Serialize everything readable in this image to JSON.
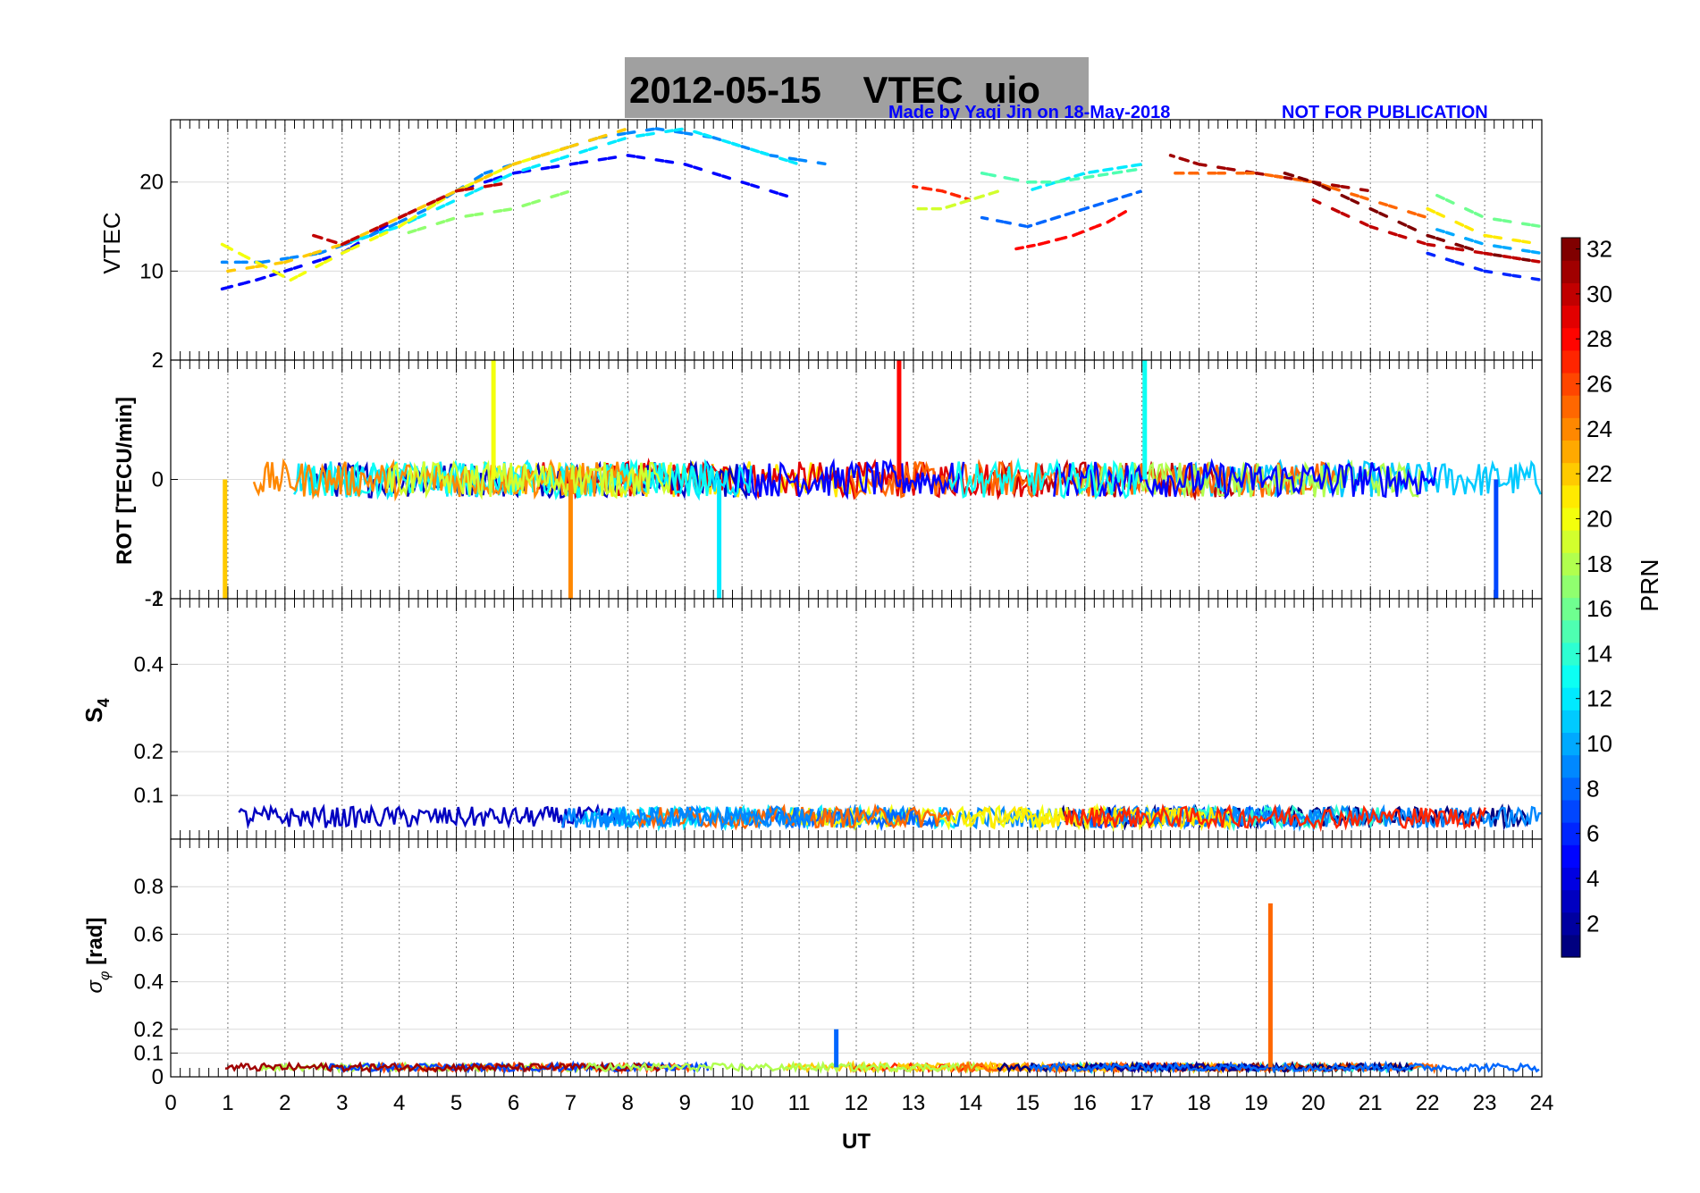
{
  "header": {
    "title": "2012-05-15    VTEC  uio",
    "credit": "Made by Yaqi Jin on 18-May-2018",
    "notice": "NOT FOR PUBLICATION",
    "credit_color": "#0000ff",
    "title_bg": "#a0a0a0"
  },
  "colorbar": {
    "label": "PRN",
    "range": [
      1,
      32
    ],
    "ticks": [
      "2",
      "4",
      "6",
      "8",
      "10",
      "12",
      "14",
      "16",
      "18",
      "20",
      "22",
      "24",
      "26",
      "28",
      "30",
      "32"
    ],
    "colormap": "jet"
  },
  "chart_data": [
    {
      "type": "scatter",
      "name": "vtec",
      "title": "2012-05-15    VTEC  uio",
      "xlabel": "",
      "ylabel": "VTEC",
      "xlim": [
        0,
        24
      ],
      "ylim": [
        0,
        27
      ],
      "yticks": [
        "10",
        "20"
      ],
      "ytick_values": [
        10,
        20
      ],
      "grid": true,
      "series_note": "one colored trace per satellite PRN (1-32); values estimated from figure",
      "series": [
        {
          "prn": 5,
          "x": [
            0.9,
            1.5,
            2.0,
            3.0,
            4.0,
            5.0,
            6.0,
            7.0,
            8.0,
            9.0,
            10.0,
            11.0
          ],
          "y": [
            8,
            9,
            10,
            12,
            16,
            19,
            21,
            22,
            23,
            22,
            20,
            18
          ]
        },
        {
          "prn": 9,
          "x": [
            0.9,
            1.6,
            2.6,
            3.5,
            4.5,
            5.5,
            6.5,
            7.5,
            8.5,
            9.5,
            10.5,
            11.5
          ],
          "y": [
            11,
            11,
            12,
            14,
            17,
            21,
            23,
            25,
            26,
            25,
            23,
            22
          ]
        },
        {
          "prn": 12,
          "x": [
            3.0,
            4.0,
            5.0,
            6.0,
            7.0,
            8.0,
            9.0,
            10.0,
            11.0
          ],
          "y": [
            13,
            15,
            18,
            21,
            23,
            25,
            26,
            24,
            22
          ]
        },
        {
          "prn": 20,
          "x": [
            0.9,
            1.5,
            2.1,
            3.0,
            4.0,
            5.0,
            6.0,
            7.0
          ],
          "y": [
            13,
            11,
            9,
            12,
            15,
            19,
            22,
            24
          ]
        },
        {
          "prn": 22,
          "x": [
            1.0,
            2.0,
            3.0,
            4.0,
            5.0,
            6.0,
            7.0,
            8.0
          ],
          "y": [
            10,
            11,
            13,
            16,
            19,
            22,
            24,
            26
          ]
        },
        {
          "prn": 17,
          "x": [
            4.0,
            5.0,
            6.0,
            7.0
          ],
          "y": [
            14,
            16,
            17,
            19
          ]
        },
        {
          "prn": 30,
          "x": [
            2.5,
            3.0,
            4.0,
            5.0,
            6.0
          ],
          "y": [
            14,
            13,
            16,
            19,
            20
          ]
        },
        {
          "prn": 27,
          "x": [
            13.0,
            13.5,
            14.0
          ],
          "y": [
            19.5,
            19,
            18
          ]
        },
        {
          "prn": 19,
          "x": [
            13.0,
            13.5,
            14.0,
            14.5
          ],
          "y": [
            17,
            17,
            18,
            19
          ]
        },
        {
          "prn": 28,
          "x": [
            14.8,
            15.2,
            15.8,
            16.4,
            16.8
          ],
          "y": [
            12.5,
            13,
            14,
            15.5,
            17
          ]
        },
        {
          "prn": 8,
          "x": [
            14.2,
            15.0,
            15.5,
            16.0,
            16.5,
            17.0
          ],
          "y": [
            16,
            15,
            16,
            17,
            18,
            19
          ]
        },
        {
          "prn": 12,
          "x": [
            15.0,
            15.5,
            16.0,
            16.5,
            17.0
          ],
          "y": [
            19,
            20,
            21,
            21.5,
            22
          ]
        },
        {
          "prn": 15,
          "x": [
            14.2,
            15.0,
            15.5,
            16.0,
            16.5,
            17.0
          ],
          "y": [
            21,
            20,
            20,
            20.5,
            21,
            21.5
          ]
        },
        {
          "prn": 31,
          "x": [
            17.5,
            18.0,
            19.0,
            20.0,
            21.0
          ],
          "y": [
            23,
            22,
            21,
            20,
            19
          ]
        },
        {
          "prn": 25,
          "x": [
            17.5,
            18.0,
            19.0,
            20.0,
            21.0,
            22.0
          ],
          "y": [
            21,
            21,
            21,
            20,
            18,
            16
          ]
        },
        {
          "prn": 32,
          "x": [
            19.5,
            20.0,
            21.0,
            22.0,
            23.0,
            24.0
          ],
          "y": [
            21,
            20,
            17,
            14,
            12,
            11
          ]
        },
        {
          "prn": 30,
          "x": [
            20.0,
            21.0,
            22.0,
            23.0,
            24.0
          ],
          "y": [
            18,
            15,
            13,
            12,
            11
          ]
        },
        {
          "prn": 16,
          "x": [
            22.0,
            23.0,
            24.0
          ],
          "y": [
            19,
            16,
            15
          ]
        },
        {
          "prn": 21,
          "x": [
            22.0,
            23.0,
            24.0
          ],
          "y": [
            17,
            14,
            13
          ]
        },
        {
          "prn": 6,
          "x": [
            22.0,
            23.0,
            24.0
          ],
          "y": [
            12,
            10,
            9
          ]
        },
        {
          "prn": 10,
          "x": [
            22.0,
            23.0,
            24.0
          ],
          "y": [
            15,
            13,
            12
          ]
        }
      ]
    },
    {
      "type": "scatter",
      "name": "rot",
      "xlabel": "",
      "ylabel": "ROT [TECU/min]",
      "xlim": [
        0,
        24
      ],
      "ylim": [
        -2,
        2
      ],
      "yticks": [
        "-2",
        "0",
        "2"
      ],
      "ytick_values": [
        -2,
        0,
        2
      ],
      "grid": true,
      "noise_band": [
        -0.3,
        0.3
      ],
      "spikes": [
        {
          "x": 0.95,
          "y": -2,
          "prn": 22
        },
        {
          "x": 5.65,
          "y": 2,
          "prn": 20
        },
        {
          "x": 7.0,
          "y": -2,
          "prn": 24
        },
        {
          "x": 9.6,
          "y": -2,
          "prn": 12
        },
        {
          "x": 12.75,
          "y": 2,
          "prn": 28
        },
        {
          "x": 17.05,
          "y": 2,
          "prn": 13
        },
        {
          "x": 23.2,
          "y": -2,
          "prn": 7
        }
      ]
    },
    {
      "type": "scatter",
      "name": "s4",
      "xlabel": "",
      "ylabel": "S4",
      "ylabel_main": "S",
      "ylabel_sub": "4",
      "xlim": [
        0,
        24
      ],
      "ylim": [
        0,
        0.55
      ],
      "yticks": [
        "0.1",
        "0.2",
        "0.4"
      ],
      "ytick_values": [
        0.1,
        0.2,
        0.4
      ],
      "top_tick": "1",
      "grid": true,
      "baseline_band": [
        0.02,
        0.08
      ]
    },
    {
      "type": "scatter",
      "name": "sigma_phi",
      "xlabel": "UT",
      "ylabel": "σφ [rad]",
      "ylabel_main": "σ",
      "ylabel_sub": "φ",
      "ylabel_unit": " [rad]",
      "xlim": [
        0,
        24
      ],
      "ylim": [
        0,
        1
      ],
      "yticks": [
        "0",
        "0.1",
        "0.2",
        "0.4",
        "0.6",
        "0.8"
      ],
      "ytick_values": [
        0,
        0.1,
        0.2,
        0.4,
        0.6,
        0.8
      ],
      "xticks": [
        "0",
        "1",
        "2",
        "3",
        "4",
        "5",
        "6",
        "7",
        "8",
        "9",
        "10",
        "11",
        "12",
        "13",
        "14",
        "15",
        "16",
        "17",
        "18",
        "19",
        "20",
        "21",
        "22",
        "23",
        "24"
      ],
      "grid": true,
      "baseline_band": [
        0.02,
        0.06
      ],
      "spikes": [
        {
          "x": 11.65,
          "y": 0.2,
          "prn": 8
        },
        {
          "x": 19.25,
          "y": 0.73,
          "prn": 25
        }
      ]
    }
  ]
}
